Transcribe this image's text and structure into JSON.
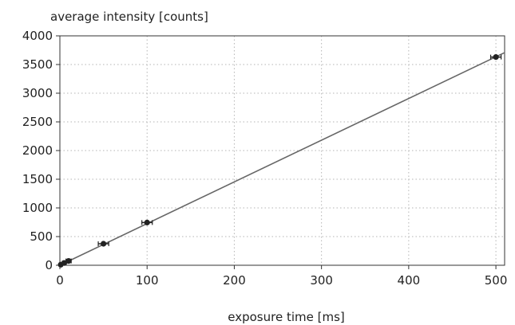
{
  "chart_data": {
    "type": "scatter",
    "title": "",
    "xlabel": "exposure time [ms]",
    "ylabel": "average intensity [counts]",
    "xlim": [
      0,
      510
    ],
    "ylim": [
      0,
      4000
    ],
    "xticks": [
      0,
      100,
      200,
      300,
      400,
      500
    ],
    "yticks": [
      0,
      500,
      1000,
      1500,
      2000,
      2500,
      3000,
      3500,
      4000
    ],
    "grid": true,
    "legend": "none",
    "series": [
      {
        "points": [
          {
            "x": 1,
            "y": 10,
            "xerr": 1,
            "yerr": 5
          },
          {
            "x": 5,
            "y": 40,
            "xerr": 2,
            "yerr": 8
          },
          {
            "x": 10,
            "y": 75,
            "xerr": 3,
            "yerr": 10
          },
          {
            "x": 50,
            "y": 375,
            "xerr": 6,
            "yerr": 15
          },
          {
            "x": 100,
            "y": 745,
            "xerr": 6,
            "yerr": 20
          },
          {
            "x": 500,
            "y": 3630,
            "xerr": 6,
            "yerr": 30
          }
        ],
        "fit": {
          "slope": 7.27,
          "intercept": 0,
          "x_range": [
            0,
            510
          ]
        }
      }
    ],
    "colors": {
      "line": "#666666",
      "marker": "#222222",
      "grid": "#b5b5b5",
      "axis": "#333333"
    }
  }
}
